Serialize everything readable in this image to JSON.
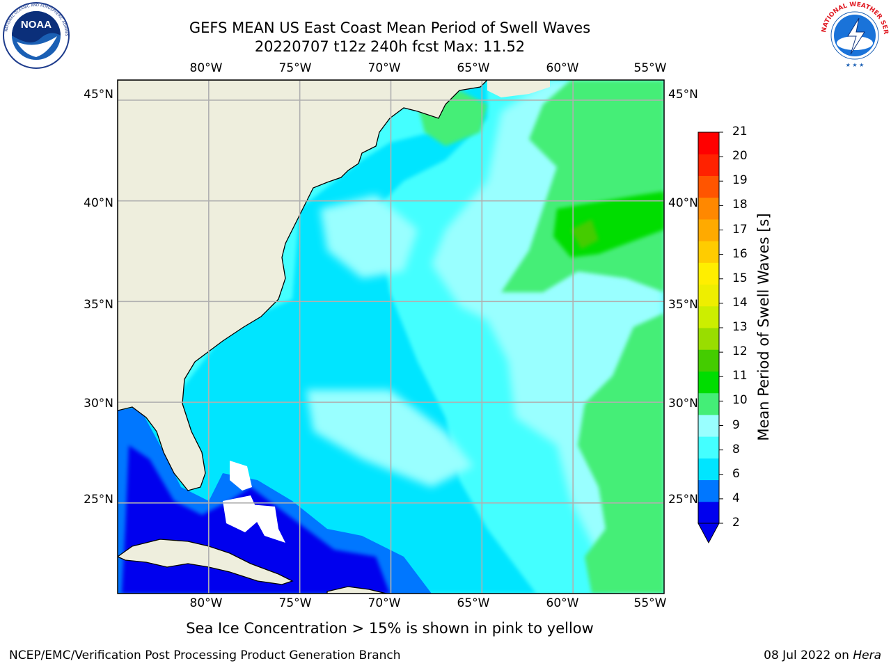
{
  "header": {
    "title_line1": "GEFS MEAN US East Coast Mean Period of Swell Waves",
    "title_line2": "20220707 t12z 240h fcst   Max: 11.52"
  },
  "logos": {
    "left": {
      "icon": "noaa-logo",
      "text": "NOAA",
      "ring_text": "NATIONAL OCEANIC AND ATMOSPHERIC ADMINISTRATION · U.S. DEPARTMENT OF COMMERCE"
    },
    "right": {
      "icon": "nws-logo",
      "ring_text": "NATIONAL WEATHER SERVICE"
    }
  },
  "map": {
    "projection": "PlateCarree",
    "lon_range": [
      -85,
      -55
    ],
    "lat_range": [
      20.5,
      46
    ],
    "lon_ticks": [
      "80°W",
      "75°W",
      "70°W",
      "65°W",
      "60°W",
      "55°W"
    ],
    "lat_ticks": [
      "45°N",
      "40°N",
      "35°N",
      "30°N",
      "25°N"
    ],
    "grid": true,
    "land_color": "#eeeedd",
    "coastline_color": "#000000",
    "gridline_color": "#b0b0b0",
    "field_summary": "Swell period mostly 6–9 s over open Atlantic, 9–11 s in the northeast (max 11.52), 2–4 s near Bahamas and Gulf of Mexico"
  },
  "colorbar": {
    "label": "Mean Period of Swell Waves [s]",
    "ticks": [
      "21",
      "20",
      "19",
      "18",
      "17",
      "16",
      "15",
      "14",
      "13",
      "12",
      "11",
      "10",
      "9",
      "8",
      "6",
      "4",
      "2"
    ],
    "colors": [
      "#0000ee",
      "#0077ff",
      "#00e5ff",
      "#44ffff",
      "#99ffff",
      "#44ee77",
      "#00dd00",
      "#44cc00",
      "#99dd00",
      "#ccee00",
      "#eeee00",
      "#ffee00",
      "#ffcc00",
      "#ffaa00",
      "#ff8800",
      "#ff5500",
      "#ff2200",
      "#ff0000"
    ],
    "extend": "min"
  },
  "caption": "Sea Ice Concentration > 15% is shown in pink to yellow",
  "footer": {
    "left": "NCEP/EMC/Verification Post Processing Product Generation Branch",
    "right_prefix": "08 Jul 2022 on ",
    "right_host": "Hera"
  }
}
